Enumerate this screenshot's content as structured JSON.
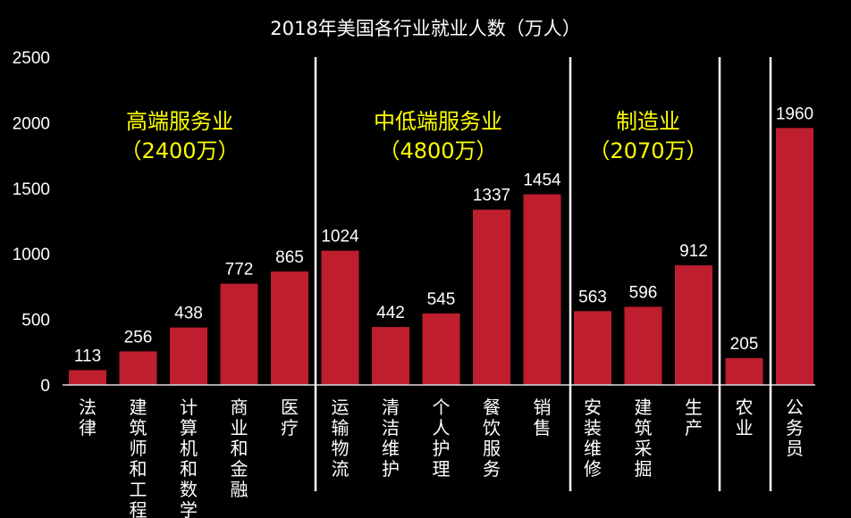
{
  "chart_data": {
    "type": "bar",
    "title": "2018年美国各行业就业人数（万人）",
    "categories": [
      "法律",
      "建筑师和工程",
      "计算机和数学",
      "商业和金融",
      "医疗",
      "运输物流",
      "清洁维护",
      "个人护理",
      "餐饮服务",
      "销售",
      "安装维修",
      "建筑采掘",
      "生产",
      "农业",
      "公务员"
    ],
    "values": [
      113,
      256,
      438,
      772,
      865,
      1024,
      442,
      545,
      1337,
      1454,
      563,
      596,
      912,
      205,
      1960
    ],
    "ylim": [
      0,
      2500
    ],
    "yticks": [
      0,
      500,
      1000,
      1500,
      2000,
      2500
    ],
    "bar_color": "#be1e2d",
    "groups": [
      {
        "name": "高端服务业",
        "total": "（2400万）",
        "color": "#ffff00"
      },
      {
        "name": "中低端服务业",
        "total": "（4800万）",
        "color": "#ffff00"
      },
      {
        "name": "制造业",
        "total": "（2070万）",
        "color": "#ffff00"
      }
    ],
    "grid": false,
    "legend": "none"
  }
}
